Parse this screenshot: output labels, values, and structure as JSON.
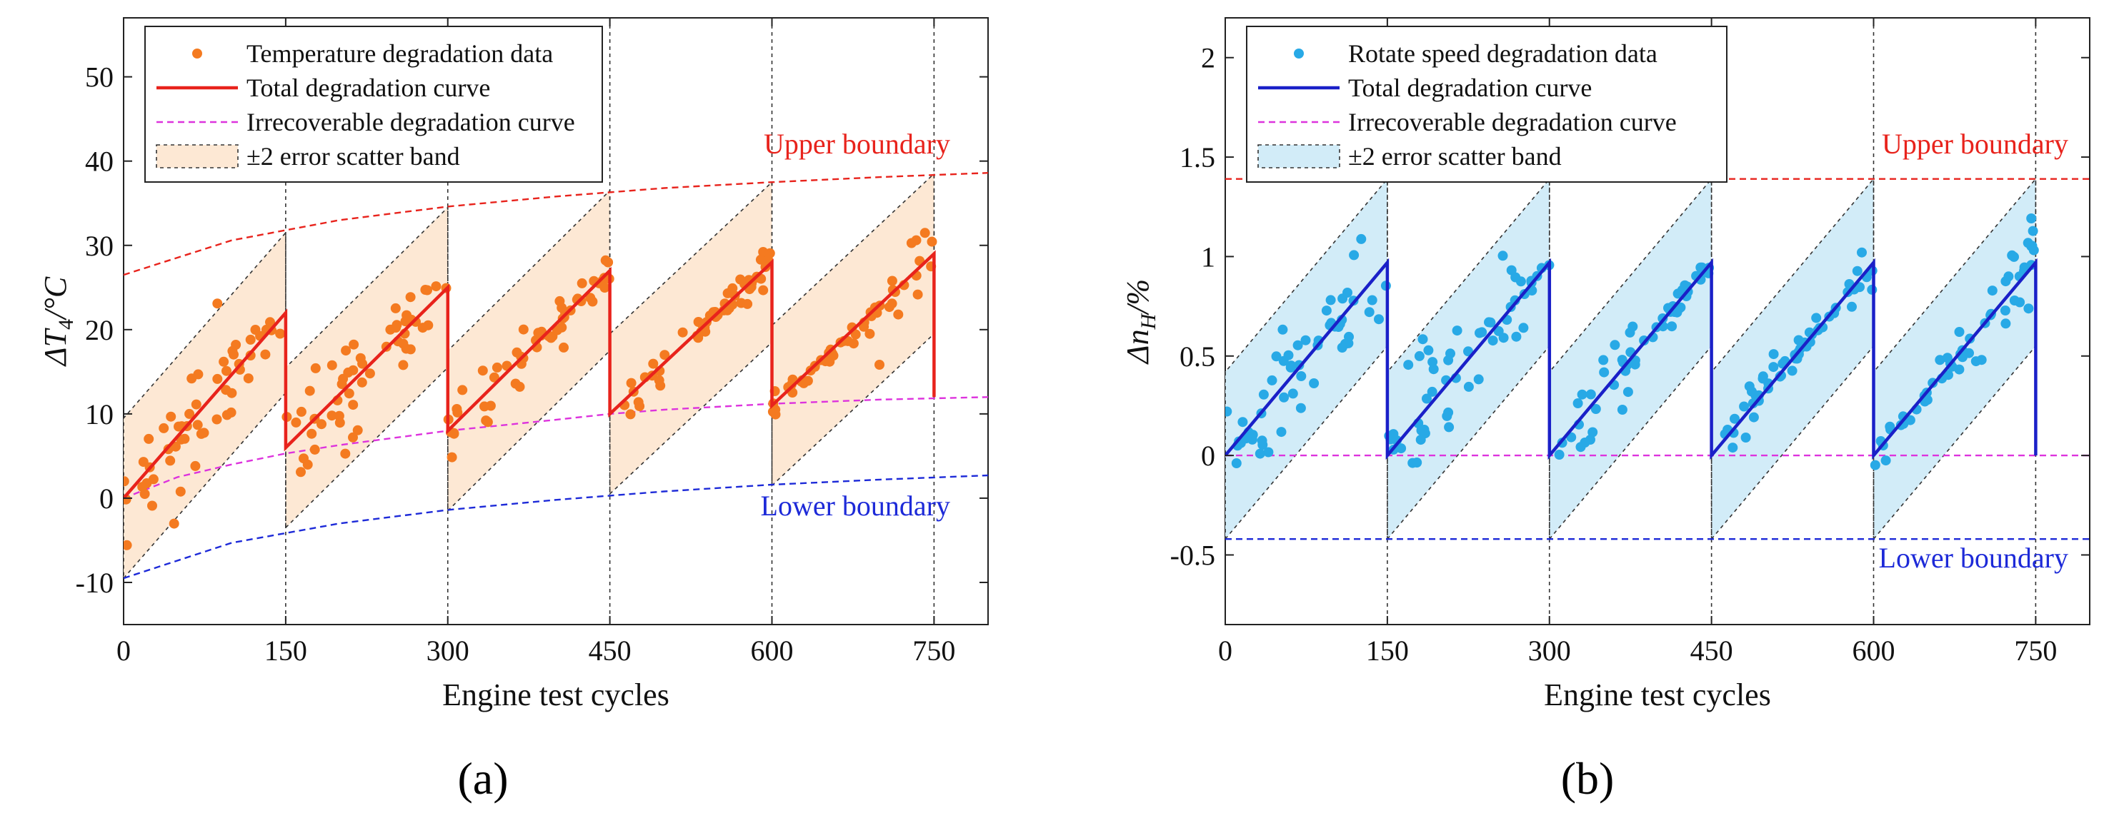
{
  "chart_data": [
    {
      "type": "scatter",
      "panel_label": "(a)",
      "ylabel_base": "ΔT",
      "ylabel_sub": "4",
      "ylabel_tail": "/°C",
      "xlabel": "Engine test cycles",
      "xlim": [
        0,
        800
      ],
      "ylim": [
        -15,
        57
      ],
      "x_ticks": [
        0,
        150,
        300,
        450,
        600,
        750
      ],
      "y_ticks": [
        -10,
        0,
        10,
        20,
        30,
        40,
        50
      ],
      "legend": {
        "position": "top-left",
        "entries": [
          "Temperature degradation data",
          "Total degradation curve",
          "Irrecoverable degradation curve",
          "±2 error scatter band"
        ]
      },
      "annotations": {
        "upper": "Upper boundary",
        "lower": "Lower boundary"
      },
      "colors": {
        "scatter": "#f47a20",
        "total": "#e8231c",
        "irrecoverable": "#dd33dd",
        "band_fill": "#fde8d4",
        "upper": "#e8231c",
        "lower": "#1d2ad8"
      },
      "cycle_boundaries": [
        150,
        300,
        450,
        600,
        750
      ],
      "segments": [
        {
          "x0": 0,
          "x1": 150,
          "y0": 0.0,
          "y1": 22.0
        },
        {
          "x0": 150,
          "x1": 300,
          "y0": 6.0,
          "y1": 25.0
        },
        {
          "x0": 300,
          "x1": 450,
          "y0": 8.0,
          "y1": 27.0
        },
        {
          "x0": 450,
          "x1": 600,
          "y0": 10.0,
          "y1": 28.0
        },
        {
          "x0": 600,
          "x1": 750,
          "y0": 11.0,
          "y1": 29.0
        }
      ],
      "band_halfwidth": 9.5,
      "total_end": {
        "x": 750,
        "y": 12.0
      },
      "irrecoverable_curve": {
        "x": [
          0,
          50,
          100,
          150,
          200,
          300,
          400,
          450,
          500,
          600,
          700,
          800
        ],
        "y": [
          0,
          2.5,
          4.0,
          5.3,
          6.3,
          8.0,
          9.3,
          10.0,
          10.5,
          11.2,
          11.7,
          12.0
        ]
      },
      "upper_boundary": {
        "x": [
          0,
          100,
          200,
          300,
          400,
          500,
          600,
          700,
          800
        ],
        "y": [
          26.5,
          30.6,
          33.0,
          34.6,
          35.8,
          36.8,
          37.5,
          38.1,
          38.6
        ]
      },
      "lower_boundary": {
        "x": [
          0,
          100,
          200,
          300,
          400,
          500,
          600,
          700,
          800
        ],
        "y": [
          -9.5,
          -5.3,
          -3.0,
          -1.4,
          -0.2,
          0.8,
          1.6,
          2.2,
          2.7
        ]
      },
      "scatter_noise": 3.5,
      "scatter_points_per_cycle": 55
    },
    {
      "type": "scatter",
      "panel_label": "(b)",
      "ylabel_base": "Δn",
      "ylabel_sub": "H",
      "ylabel_tail": "/%",
      "xlabel": "Engine test cycles",
      "xlim": [
        0,
        800
      ],
      "ylim": [
        -0.85,
        2.2
      ],
      "x_ticks": [
        0,
        150,
        300,
        450,
        600,
        750
      ],
      "y_ticks": [
        -0.5,
        0,
        0.5,
        1,
        1.5,
        2
      ],
      "y_tick_labels": [
        "-0.5",
        "0",
        "0.5",
        "1",
        "1.5",
        "2"
      ],
      "legend": {
        "position": "top-left",
        "entries": [
          "Rotate speed degradation data",
          "Total degradation curve",
          "Irrecoverable degradation curve",
          "±2 error scatter band"
        ]
      },
      "annotations": {
        "upper": "Upper boundary",
        "lower": "Lower boundary"
      },
      "colors": {
        "scatter": "#28a9e6",
        "total": "#1a20c8",
        "irrecoverable": "#dd33dd",
        "band_fill": "#d2ecf8",
        "upper": "#e8231c",
        "lower": "#1d2ad8"
      },
      "cycle_boundaries": [
        150,
        300,
        450,
        600,
        750
      ],
      "segments": [
        {
          "x0": 0,
          "x1": 150,
          "y0": 0.0,
          "y1": 0.97
        },
        {
          "x0": 150,
          "x1": 300,
          "y0": 0.0,
          "y1": 0.97
        },
        {
          "x0": 300,
          "x1": 450,
          "y0": 0.0,
          "y1": 0.97
        },
        {
          "x0": 450,
          "x1": 600,
          "y0": 0.0,
          "y1": 0.97
        },
        {
          "x0": 600,
          "x1": 750,
          "y0": 0.0,
          "y1": 0.97
        }
      ],
      "band_halfwidth": 0.42,
      "total_end": {
        "x": 750,
        "y": 0.0
      },
      "irrecoverable_curve": {
        "x": [
          0,
          800
        ],
        "y": [
          0,
          0
        ]
      },
      "upper_boundary": {
        "x": [
          0,
          800
        ],
        "y": [
          1.39,
          1.39
        ]
      },
      "lower_boundary": {
        "x": [
          0,
          800
        ],
        "y": [
          -0.42,
          -0.42
        ]
      },
      "scatter_noise": 0.17,
      "scatter_points_per_cycle": 55
    }
  ]
}
